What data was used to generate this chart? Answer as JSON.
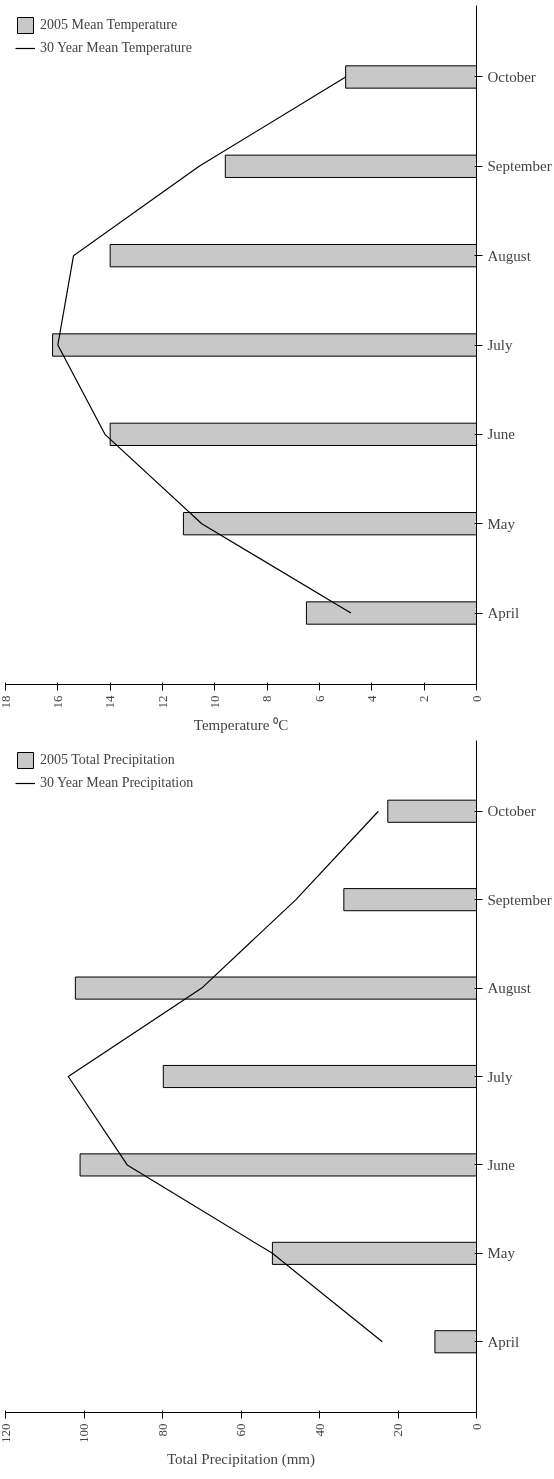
{
  "chart_data": [
    {
      "type": "bar",
      "orientation": "horizontal",
      "xlabel": "Temperature ⁰C",
      "categories": [
        "October",
        "September",
        "August",
        "July",
        "June",
        "May",
        "April"
      ],
      "series": [
        {
          "name": "2005 Mean Temperature",
          "color": "#c8c8c8",
          "values": [
            5.0,
            9.6,
            14.0,
            16.2,
            14.0,
            11.2,
            6.5
          ]
        },
        {
          "name": "30 Year Mean Temperature",
          "type": "line",
          "color": "#000000",
          "values": [
            5.0,
            10.6,
            15.4,
            16.0,
            14.2,
            10.5,
            4.8
          ]
        }
      ],
      "xlim": [
        18,
        0
      ],
      "xticks": [
        0,
        2,
        4,
        6,
        8,
        10,
        12,
        14,
        16,
        18
      ],
      "grid": false,
      "legend": "top left"
    },
    {
      "type": "bar",
      "orientation": "horizontal",
      "xlabel": "Total Precipitation (mm)",
      "categories": [
        "October",
        "September",
        "August",
        "July",
        "June",
        "May",
        "April"
      ],
      "series": [
        {
          "name": "2005 Total Precipitation",
          "color": "#c8c8c8",
          "values": [
            22.6,
            33.8,
            102.2,
            79.8,
            101,
            52,
            10.6
          ]
        },
        {
          "name": "30 Year Mean Precipitation",
          "type": "line",
          "color": "#000000",
          "values": [
            25,
            46,
            70,
            104,
            89,
            52,
            24
          ]
        }
      ],
      "xlim": [
        120,
        0
      ],
      "xticks": [
        0,
        20,
        40,
        60,
        80,
        100,
        120
      ],
      "grid": false,
      "legend": "top left"
    }
  ]
}
